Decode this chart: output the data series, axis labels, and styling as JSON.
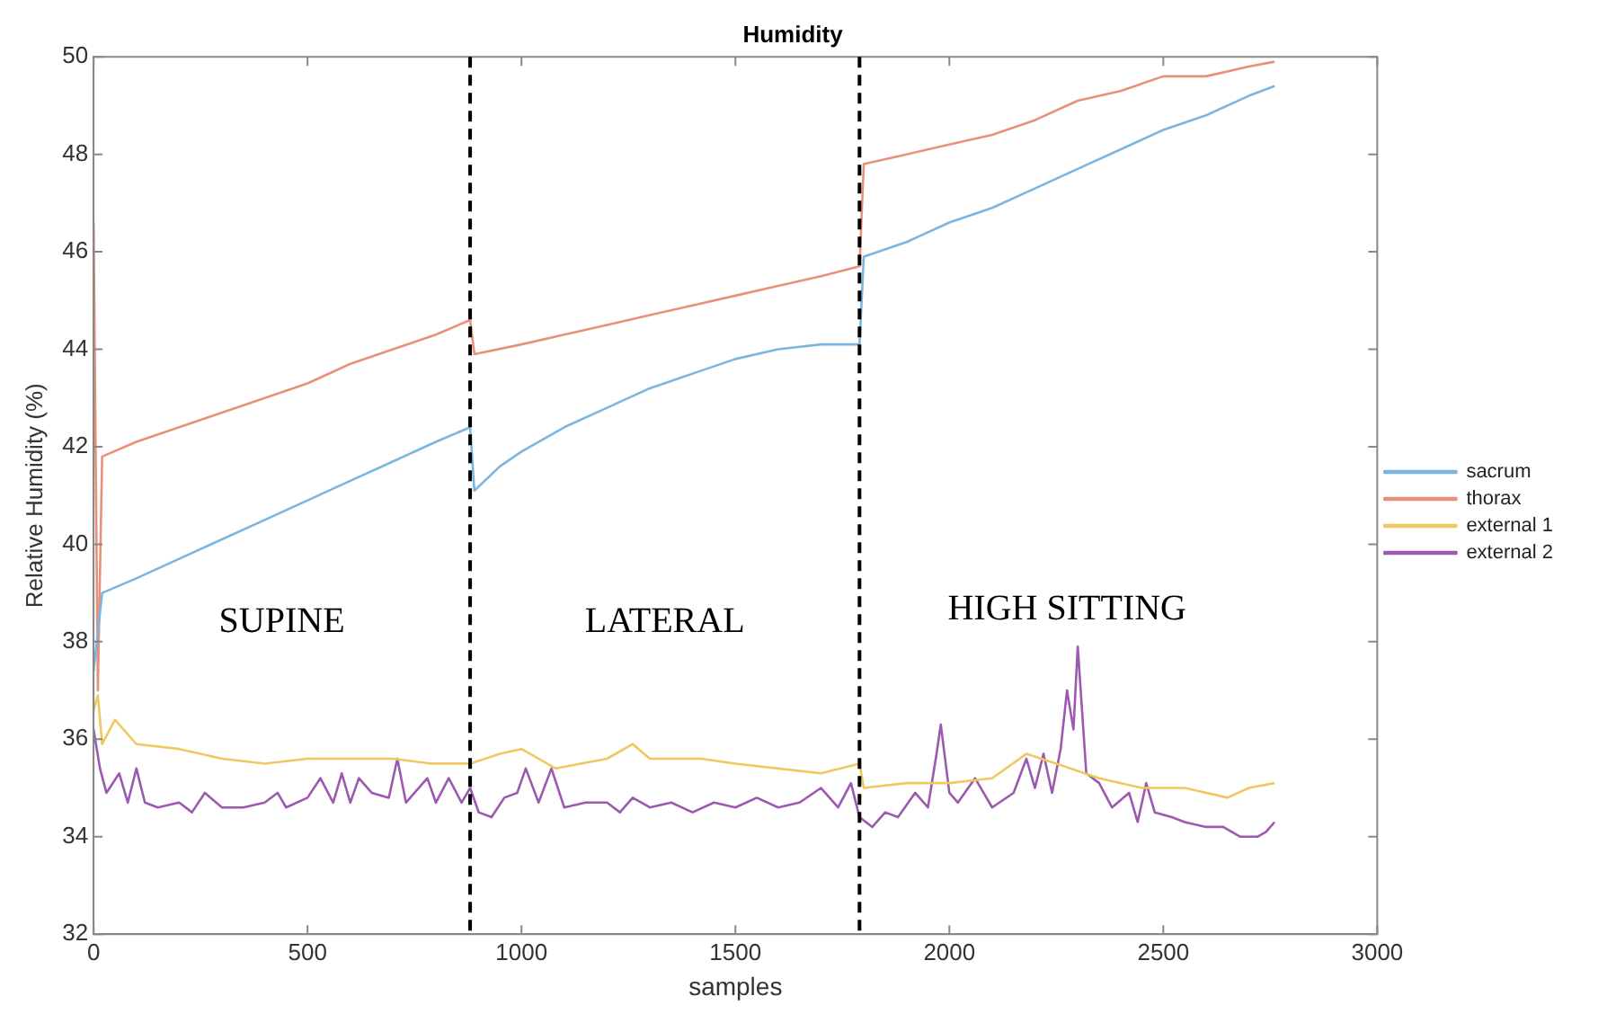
{
  "chart_data": {
    "type": "line",
    "title": "Humidity",
    "xlabel": "samples",
    "ylabel": "Relative Humidity (%)",
    "xlim": [
      0,
      3000
    ],
    "xticks": [
      0,
      500,
      1000,
      1500,
      2000,
      2500,
      3000
    ],
    "ylim": [
      32,
      50
    ],
    "yticks": [
      32,
      34,
      36,
      38,
      40,
      42,
      44,
      46,
      48,
      50
    ],
    "grid": false,
    "legend": "right",
    "marker": "none",
    "line_style": "solid",
    "series": [
      {
        "name": "sacrum",
        "color": "#7ab6e0",
        "x": [
          0,
          20,
          100,
          200,
          300,
          400,
          500,
          600,
          700,
          800,
          880,
          890,
          950,
          1000,
          1100,
          1200,
          1300,
          1400,
          1500,
          1600,
          1700,
          1790,
          1800,
          1900,
          2000,
          2100,
          2200,
          2300,
          2400,
          2500,
          2600,
          2700,
          2760
        ],
        "values": [
          37.4,
          39.0,
          39.3,
          39.7,
          40.1,
          40.5,
          40.9,
          41.3,
          41.7,
          42.1,
          42.4,
          41.1,
          41.6,
          41.9,
          42.4,
          42.8,
          43.2,
          43.5,
          43.8,
          44.0,
          44.1,
          44.1,
          45.9,
          46.2,
          46.6,
          46.9,
          47.3,
          47.7,
          48.1,
          48.5,
          48.8,
          49.2,
          49.4
        ]
      },
      {
        "name": "thorax",
        "color": "#e8917a",
        "x": [
          0,
          10,
          20,
          100,
          200,
          300,
          400,
          500,
          600,
          700,
          800,
          880,
          890,
          1000,
          1100,
          1200,
          1300,
          1400,
          1500,
          1600,
          1700,
          1790,
          1800,
          1900,
          2000,
          2100,
          2200,
          2300,
          2400,
          2500,
          2600,
          2700,
          2760
        ],
        "values": [
          46.6,
          37.0,
          41.8,
          42.1,
          42.4,
          42.7,
          43.0,
          43.3,
          43.7,
          44.0,
          44.3,
          44.6,
          43.9,
          44.1,
          44.3,
          44.5,
          44.7,
          44.9,
          45.1,
          45.3,
          45.5,
          45.7,
          47.8,
          48.0,
          48.2,
          48.4,
          48.7,
          49.1,
          49.3,
          49.6,
          49.6,
          49.8,
          49.9
        ]
      },
      {
        "name": "external 1",
        "color": "#f0c860",
        "x": [
          0,
          10,
          20,
          50,
          100,
          200,
          300,
          400,
          500,
          600,
          700,
          790,
          880,
          950,
          1000,
          1080,
          1200,
          1260,
          1300,
          1420,
          1500,
          1600,
          1700,
          1790,
          1800,
          1900,
          2000,
          2100,
          2180,
          2250,
          2350,
          2450,
          2550,
          2650,
          2700,
          2760
        ],
        "values": [
          36.6,
          36.9,
          35.9,
          36.4,
          35.9,
          35.8,
          35.6,
          35.5,
          35.6,
          35.6,
          35.6,
          35.5,
          35.5,
          35.7,
          35.8,
          35.4,
          35.6,
          35.9,
          35.6,
          35.6,
          35.5,
          35.4,
          35.3,
          35.5,
          35.0,
          35.1,
          35.1,
          35.2,
          35.7,
          35.5,
          35.2,
          35.0,
          35.0,
          34.8,
          35.0,
          35.1
        ]
      },
      {
        "name": "external 2",
        "color": "#9b59b0",
        "x": [
          0,
          15,
          30,
          60,
          80,
          100,
          120,
          150,
          200,
          230,
          260,
          300,
          350,
          400,
          430,
          450,
          500,
          530,
          560,
          580,
          600,
          620,
          650,
          690,
          710,
          730,
          780,
          800,
          830,
          860,
          880,
          900,
          930,
          960,
          990,
          1010,
          1040,
          1070,
          1100,
          1150,
          1200,
          1230,
          1260,
          1300,
          1350,
          1400,
          1450,
          1500,
          1550,
          1600,
          1650,
          1700,
          1740,
          1770,
          1790,
          1820,
          1850,
          1880,
          1920,
          1950,
          1970,
          1980,
          2000,
          2020,
          2060,
          2100,
          2150,
          2180,
          2200,
          2220,
          2240,
          2260,
          2275,
          2290,
          2300,
          2320,
          2350,
          2380,
          2420,
          2440,
          2460,
          2480,
          2520,
          2550,
          2600,
          2640,
          2680,
          2720,
          2740,
          2760
        ],
        "values": [
          36.2,
          35.4,
          34.9,
          35.3,
          34.7,
          35.4,
          34.7,
          34.6,
          34.7,
          34.5,
          34.9,
          34.6,
          34.6,
          34.7,
          34.9,
          34.6,
          34.8,
          35.2,
          34.7,
          35.3,
          34.7,
          35.2,
          34.9,
          34.8,
          35.6,
          34.7,
          35.2,
          34.7,
          35.2,
          34.7,
          35.0,
          34.5,
          34.4,
          34.8,
          34.9,
          35.4,
          34.7,
          35.4,
          34.6,
          34.7,
          34.7,
          34.5,
          34.8,
          34.6,
          34.7,
          34.5,
          34.7,
          34.6,
          34.8,
          34.6,
          34.7,
          35.0,
          34.6,
          35.1,
          34.4,
          34.2,
          34.5,
          34.4,
          34.9,
          34.6,
          35.7,
          36.3,
          34.9,
          34.7,
          35.2,
          34.6,
          34.9,
          35.6,
          35.0,
          35.7,
          34.9,
          35.8,
          37.0,
          36.2,
          37.9,
          35.3,
          35.1,
          34.6,
          34.9,
          34.3,
          35.1,
          34.5,
          34.4,
          34.3,
          34.2,
          34.2,
          34.0,
          34.0,
          34.1,
          34.3
        ]
      }
    ],
    "ref_lines": [
      {
        "axis": "x",
        "value": 880,
        "color": "#000000",
        "line_style": "dashed"
      },
      {
        "axis": "x",
        "value": 1790,
        "color": "#000000",
        "line_style": "dashed"
      }
    ],
    "annotations": [
      "SUPINE",
      "LATERAL",
      "HIGH SITTING"
    ]
  }
}
